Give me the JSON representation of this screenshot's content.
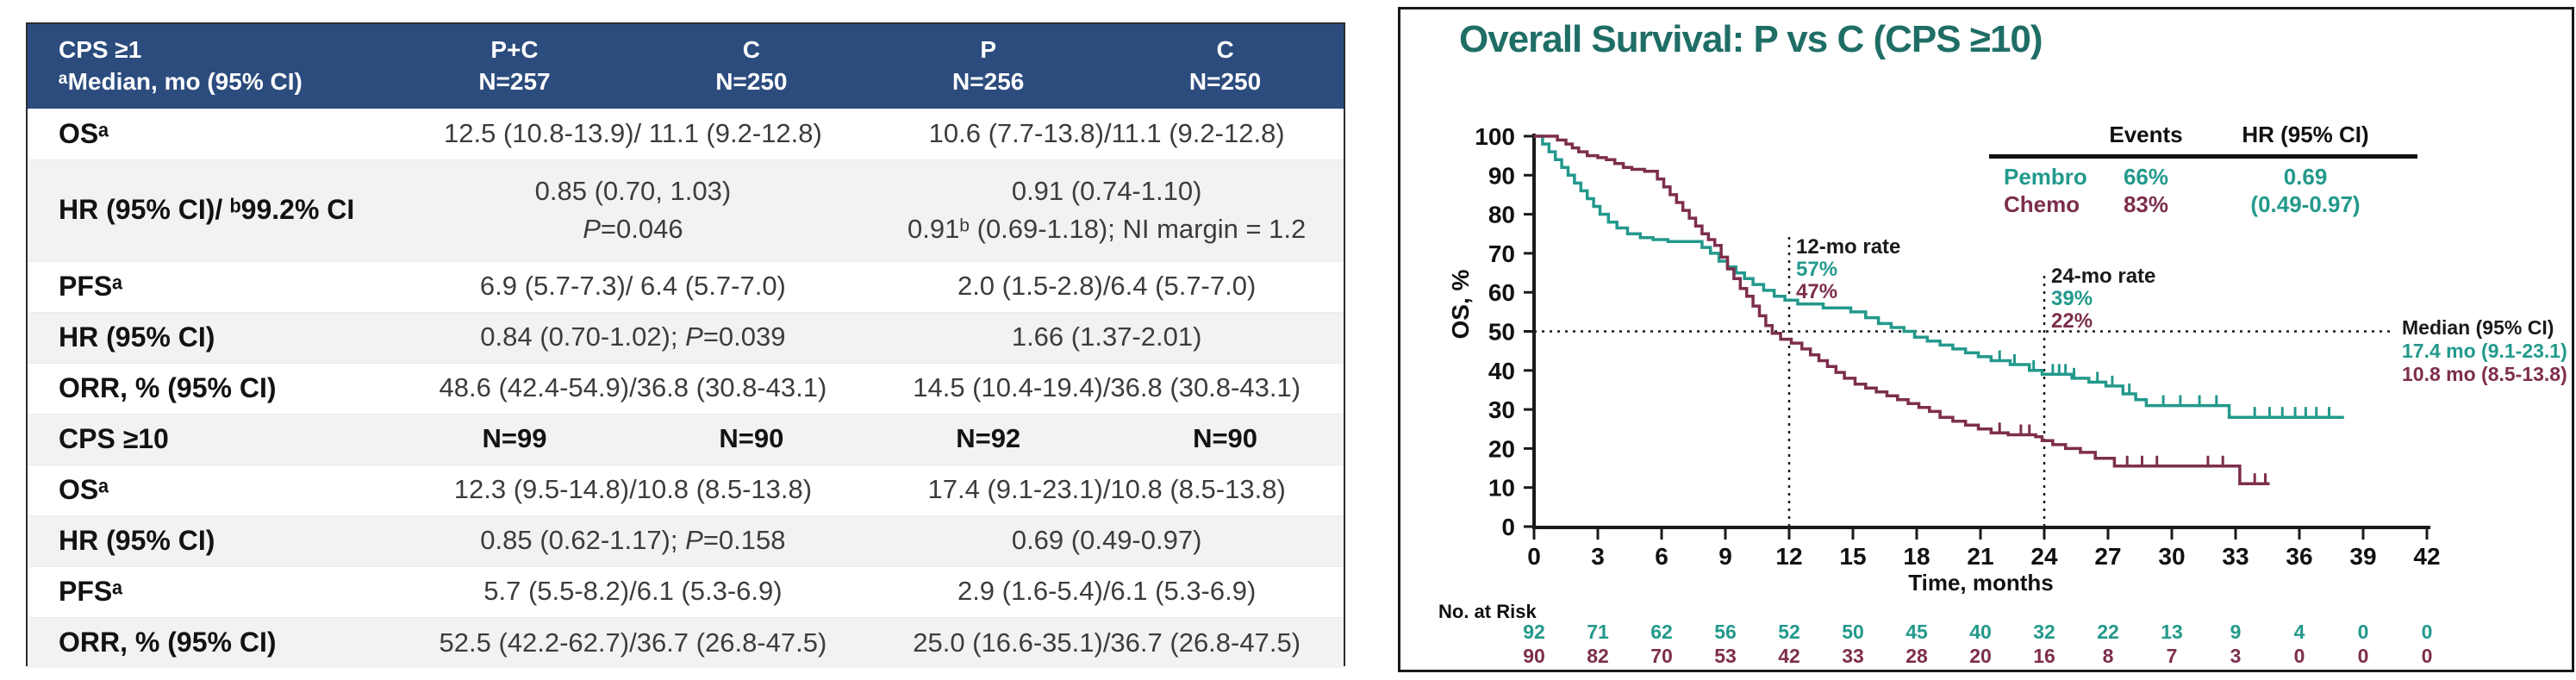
{
  "colors": {
    "pembro": "#23998c",
    "chemo": "#7d2e4d",
    "title_teal": "#1f6e66",
    "header_blue": "#2c4c7e",
    "row_alt": "#f2f2f3",
    "axis_black": "#1a1a1a"
  },
  "left_table": {
    "header": {
      "title_line1": "CPS ≥1",
      "title_line2": "ᵃMedian, mo (95% CI)",
      "columns": [
        {
          "arm": "P+C",
          "n": "N=257"
        },
        {
          "arm": "C",
          "n": "N=250"
        },
        {
          "arm": "P",
          "n": "N=256"
        },
        {
          "arm": "C",
          "n": "N=250"
        }
      ]
    },
    "rows": [
      {
        "label": "OSᵃ",
        "bold": false,
        "cells": [
          {
            "text": "12.5 (10.8-13.9)/ 11.1 (9.2-12.8)",
            "span": 2
          },
          {
            "text": "10.6 (7.7-13.8)/11.1 (9.2-12.8)",
            "span": 2
          }
        ],
        "height": 59
      },
      {
        "label": "HR (95% CI)/ ᵇ99.2% CI",
        "bold": false,
        "cells": [
          {
            "text": "0.85 (0.70, 1.03)\nP=0.046",
            "span": 2
          },
          {
            "text": "0.91 (0.74-1.10)\n0.91ᵇ (0.69-1.18); NI margin = 1.2",
            "span": 2
          }
        ],
        "height": 118
      },
      {
        "label": "PFSᵃ",
        "bold": false,
        "cells": [
          {
            "text": "6.9 (5.7-7.3)/ 6.4 (5.7-7.0)",
            "span": 2
          },
          {
            "text": "2.0 (1.5-2.8)/6.4 (5.7-7.0)",
            "span": 2
          }
        ],
        "height": 59
      },
      {
        "label": "HR (95% CI)",
        "bold": false,
        "cells": [
          {
            "text": "0.84 (0.70-1.02); P=0.039",
            "span": 2
          },
          {
            "text": "1.66 (1.37-2.01)",
            "span": 2
          }
        ],
        "height": 59
      },
      {
        "label": "ORR, % (95% CI)",
        "bold": false,
        "cells": [
          {
            "text": "48.6 (42.4-54.9)/36.8 (30.8-43.1)",
            "span": 2
          },
          {
            "text": "14.5 (10.4-19.4)/36.8 (30.8-43.1)",
            "span": 2
          }
        ],
        "height": 59
      },
      {
        "label": "CPS ≥10",
        "bold": true,
        "cells": [
          {
            "text": "N=99",
            "span": 1
          },
          {
            "text": "N=90",
            "span": 1
          },
          {
            "text": "N=92",
            "span": 1
          },
          {
            "text": "N=90",
            "span": 1
          }
        ],
        "height": 59
      },
      {
        "label": "OSᵃ",
        "bold": false,
        "cells": [
          {
            "text": "12.3 (9.5-14.8)/10.8 (8.5-13.8)",
            "span": 2
          },
          {
            "text": "17.4 (9.1-23.1)/10.8 (8.5-13.8)",
            "span": 2
          }
        ],
        "height": 59
      },
      {
        "label": "HR (95% CI)",
        "bold": false,
        "cells": [
          {
            "text": "0.85 (0.62-1.17); P=0.158",
            "span": 2
          },
          {
            "text": "0.69 (0.49-0.97)",
            "span": 2
          }
        ],
        "height": 59
      },
      {
        "label": "PFSᵃ",
        "bold": false,
        "cells": [
          {
            "text": "5.7 (5.5-8.2)/6.1 (5.3-6.9)",
            "span": 2
          },
          {
            "text": "2.9 (1.6-5.4)/6.1 (5.3-6.9)",
            "span": 2
          }
        ],
        "height": 59
      },
      {
        "label": "ORR, % (95% CI)",
        "bold": false,
        "cells": [
          {
            "text": "52.5 (42.2-62.7)/36.7 (26.8-47.5)",
            "span": 2
          },
          {
            "text": "25.0 (16.6-35.1)/36.7 (26.8-47.5)",
            "span": 2
          }
        ],
        "height": 59
      }
    ]
  },
  "chart_data": {
    "type": "line",
    "subtype": "kaplan-meier",
    "title": "Overall Survival: P vs C (CPS ≥10)",
    "xlabel": "Time, months",
    "ylabel": "OS, %",
    "xlim": [
      0,
      42
    ],
    "ylim": [
      0,
      100
    ],
    "x_ticks": [
      0,
      3,
      6,
      9,
      12,
      15,
      18,
      21,
      24,
      27,
      30,
      33,
      36,
      39,
      42
    ],
    "y_ticks": [
      0,
      10,
      20,
      30,
      40,
      50,
      60,
      70,
      80,
      90,
      100
    ],
    "grid": false,
    "legend": {
      "col_events": "Events",
      "col_hr": "HR (95% CI)",
      "rows": [
        {
          "name": "Pembro",
          "events": "66%",
          "hr": "0.69"
        },
        {
          "name": "Chemo",
          "events": "83%",
          "hr": "(0.49-0.97)"
        }
      ]
    },
    "annotations": {
      "rate12": {
        "label": "12-mo rate",
        "pembro": "57%",
        "chemo": "47%"
      },
      "rate24": {
        "label": "24-mo rate",
        "pembro": "39%",
        "chemo": "22%"
      },
      "median": {
        "label": "Median (95% CI)",
        "pembro": "17.4 mo (9.1-23.1)",
        "chemo": "10.8 mo (8.5-13.8)"
      }
    },
    "ref_lines": {
      "h": {
        "y": 50,
        "x_from": 0,
        "x_to": 40.3
      },
      "v": [
        {
          "x": 12,
          "y_top": 75
        },
        {
          "x": 24,
          "y_top": 65
        }
      ]
    },
    "series": [
      {
        "name": "Pembro",
        "color": "#23998c",
        "start": 100,
        "end_x": 38.1,
        "drops": [
          [
            0.4,
            98
          ],
          [
            0.7,
            96
          ],
          [
            1,
            94
          ],
          [
            1.3,
            92
          ],
          [
            1.6,
            90
          ],
          [
            1.9,
            88
          ],
          [
            2.2,
            86
          ],
          [
            2.5,
            84
          ],
          [
            2.8,
            82
          ],
          [
            3.1,
            80
          ],
          [
            3.5,
            78
          ],
          [
            3.9,
            76.5
          ],
          [
            4.4,
            75
          ],
          [
            5,
            74
          ],
          [
            5.6,
            73.5
          ],
          [
            6.3,
            73
          ],
          [
            7.9,
            71.5
          ],
          [
            8.3,
            70
          ],
          [
            8.7,
            68
          ],
          [
            9.1,
            66.5
          ],
          [
            9.5,
            65
          ],
          [
            9.9,
            63.5
          ],
          [
            10.3,
            62
          ],
          [
            10.8,
            60.5
          ],
          [
            11.3,
            59
          ],
          [
            11.8,
            58
          ],
          [
            12.4,
            57
          ],
          [
            13.6,
            56
          ],
          [
            14.9,
            55
          ],
          [
            15.6,
            53.5
          ],
          [
            16.2,
            52
          ],
          [
            16.8,
            51
          ],
          [
            17.4,
            50
          ],
          [
            17.9,
            48.5
          ],
          [
            18.5,
            47.5
          ],
          [
            19.1,
            46.5
          ],
          [
            19.7,
            45.5
          ],
          [
            20.3,
            44.5
          ],
          [
            20.9,
            43.5
          ],
          [
            21.5,
            42.5
          ],
          [
            22.4,
            41.5
          ],
          [
            23.3,
            40
          ],
          [
            23.9,
            39
          ],
          [
            25.3,
            38
          ],
          [
            26.1,
            37
          ],
          [
            26.9,
            36
          ],
          [
            27.7,
            34
          ],
          [
            28.3,
            32.5
          ],
          [
            28.8,
            31
          ],
          [
            32.7,
            28
          ]
        ],
        "censors": [
          21.9,
          22.6,
          23.5,
          24.4,
          24.7,
          25,
          25.4,
          26.5,
          27.2,
          28,
          29.6,
          30.4,
          31.3,
          32.1,
          33.9,
          34.6,
          35.2,
          35.8,
          36.3,
          36.8,
          37.4
        ]
      },
      {
        "name": "Chemo",
        "color": "#7d2e4d",
        "start": 100,
        "end_x": 34.6,
        "drops": [
          [
            1.1,
            99
          ],
          [
            1.5,
            98
          ],
          [
            1.8,
            97
          ],
          [
            2.1,
            96
          ],
          [
            2.5,
            95
          ],
          [
            3,
            94.5
          ],
          [
            3.4,
            94
          ],
          [
            3.8,
            93
          ],
          [
            4.2,
            92
          ],
          [
            4.6,
            91.5
          ],
          [
            5.2,
            91
          ],
          [
            5.8,
            89
          ],
          [
            6.1,
            87
          ],
          [
            6.4,
            85
          ],
          [
            6.7,
            83
          ],
          [
            7,
            81
          ],
          [
            7.3,
            79
          ],
          [
            7.6,
            77
          ],
          [
            7.9,
            75
          ],
          [
            8.2,
            73.5
          ],
          [
            8.5,
            72
          ],
          [
            8.8,
            69
          ],
          [
            9.1,
            66
          ],
          [
            9.4,
            63.5
          ],
          [
            9.7,
            61
          ],
          [
            10,
            59
          ],
          [
            10.3,
            56.5
          ],
          [
            10.6,
            54
          ],
          [
            10.9,
            51.5
          ],
          [
            11.2,
            49.5
          ],
          [
            11.6,
            48
          ],
          [
            12.1,
            47
          ],
          [
            12.6,
            45.5
          ],
          [
            13,
            44
          ],
          [
            13.4,
            42.5
          ],
          [
            13.8,
            41
          ],
          [
            14.2,
            39.5
          ],
          [
            14.6,
            38
          ],
          [
            15.1,
            36.5
          ],
          [
            15.6,
            35.5
          ],
          [
            16.1,
            34.5
          ],
          [
            16.6,
            33.5
          ],
          [
            17.1,
            32.5
          ],
          [
            17.6,
            31.5
          ],
          [
            18.1,
            30.5
          ],
          [
            18.6,
            29.5
          ],
          [
            19.1,
            28
          ],
          [
            19.7,
            27
          ],
          [
            20.3,
            26
          ],
          [
            20.9,
            25
          ],
          [
            21.5,
            24
          ],
          [
            22.3,
            23.5
          ],
          [
            23.6,
            23
          ],
          [
            23.9,
            22
          ],
          [
            24.4,
            21
          ],
          [
            25,
            20
          ],
          [
            25.7,
            19
          ],
          [
            26.4,
            17.5
          ],
          [
            27.3,
            15.5
          ],
          [
            33.2,
            11
          ]
        ],
        "censors": [
          21.9,
          22.9,
          23.3,
          27.9,
          28.6,
          29.3,
          31.7,
          32.4,
          33.9,
          34.4
        ]
      }
    ],
    "at_risk": {
      "label": "No. at Risk",
      "times": [
        0,
        3,
        6,
        9,
        12,
        15,
        18,
        21,
        24,
        27,
        30,
        33,
        36,
        39,
        42
      ],
      "rows": [
        {
          "name": "Pembro",
          "values": [
            92,
            71,
            62,
            56,
            52,
            50,
            45,
            40,
            32,
            22,
            13,
            9,
            4,
            0,
            0
          ]
        },
        {
          "name": "Chemo",
          "values": [
            90,
            82,
            70,
            53,
            42,
            33,
            28,
            20,
            16,
            8,
            7,
            3,
            0,
            0,
            0
          ]
        }
      ]
    }
  }
}
